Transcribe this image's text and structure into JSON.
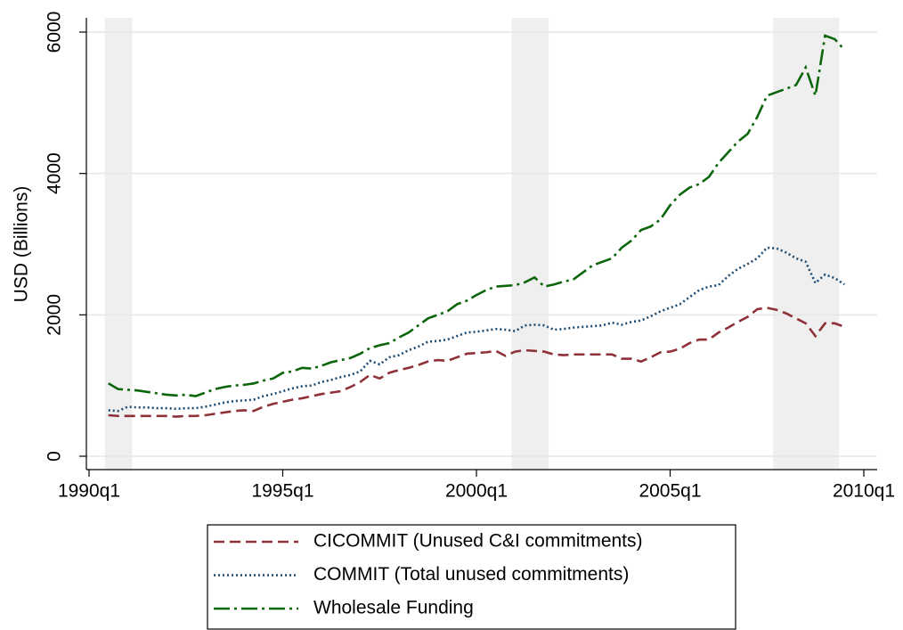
{
  "chart_data": {
    "type": "line",
    "ylabel": "USD (Billions)",
    "x": [
      "1990q3",
      "1990q4",
      "1991q1",
      "1991q2",
      "1991q3",
      "1991q4",
      "1992q1",
      "1992q2",
      "1992q3",
      "1992q4",
      "1993q1",
      "1993q2",
      "1993q3",
      "1993q4",
      "1994q1",
      "1994q2",
      "1994q3",
      "1994q4",
      "1995q1",
      "1995q2",
      "1995q3",
      "1995q4",
      "1996q1",
      "1996q2",
      "1996q3",
      "1996q4",
      "1997q1",
      "1997q2",
      "1997q3",
      "1997q4",
      "1998q1",
      "1998q2",
      "1998q3",
      "1998q4",
      "1999q1",
      "1999q2",
      "1999q3",
      "1999q4",
      "2000q1",
      "2000q2",
      "2000q3",
      "2000q4",
      "2001q1",
      "2001q2",
      "2001q3",
      "2001q4",
      "2002q1",
      "2002q2",
      "2002q3",
      "2002q4",
      "2003q1",
      "2003q2",
      "2003q3",
      "2003q4",
      "2004q1",
      "2004q2",
      "2004q3",
      "2004q4",
      "2005q1",
      "2005q2",
      "2005q3",
      "2005q4",
      "2006q1",
      "2006q2",
      "2006q3",
      "2006q4",
      "2007q1",
      "2007q2",
      "2007q3",
      "2007q4",
      "2008q1",
      "2008q2",
      "2008q3",
      "2008q4",
      "2009q1",
      "2009q2",
      "2009q3"
    ],
    "series": [
      {
        "name": "CICOMMIT (Unused C&I commitments)",
        "color": "#8f3139",
        "dash": "12,6",
        "values": [
          580,
          570,
          570,
          570,
          570,
          570,
          570,
          560,
          570,
          570,
          580,
          600,
          620,
          640,
          650,
          640,
          700,
          740,
          770,
          800,
          820,
          850,
          880,
          900,
          920,
          980,
          1050,
          1150,
          1100,
          1180,
          1220,
          1250,
          1290,
          1340,
          1360,
          1350,
          1400,
          1450,
          1460,
          1470,
          1490,
          1420,
          1480,
          1500,
          1490,
          1480,
          1440,
          1430,
          1440,
          1440,
          1440,
          1440,
          1440,
          1380,
          1380,
          1340,
          1400,
          1470,
          1480,
          1520,
          1600,
          1650,
          1650,
          1750,
          1820,
          1900,
          1970,
          2080,
          2100,
          2070,
          2020,
          1950,
          1880,
          1700,
          1880,
          1880,
          1830
        ]
      },
      {
        "name": "COMMIT (Total unused commitments)",
        "color": "#1b4a72",
        "dash": "2,3",
        "values": [
          650,
          640,
          700,
          690,
          690,
          680,
          680,
          670,
          680,
          680,
          700,
          730,
          760,
          780,
          790,
          800,
          850,
          880,
          920,
          960,
          990,
          1000,
          1050,
          1080,
          1120,
          1150,
          1200,
          1350,
          1300,
          1400,
          1430,
          1500,
          1550,
          1620,
          1630,
          1650,
          1700,
          1750,
          1760,
          1780,
          1800,
          1790,
          1770,
          1850,
          1860,
          1850,
          1790,
          1800,
          1820,
          1830,
          1840,
          1850,
          1890,
          1860,
          1900,
          1920,
          1980,
          2050,
          2100,
          2150,
          2250,
          2350,
          2400,
          2420,
          2550,
          2650,
          2720,
          2800,
          2950,
          2940,
          2880,
          2800,
          2750,
          2450,
          2570,
          2520,
          2430
        ]
      },
      {
        "name": "Wholesale Funding",
        "color": "#0b650b",
        "dash": "18,5,3,5",
        "values": [
          1030,
          950,
          940,
          930,
          910,
          890,
          870,
          860,
          870,
          850,
          900,
          950,
          980,
          1000,
          1010,
          1030,
          1070,
          1100,
          1180,
          1200,
          1250,
          1240,
          1280,
          1330,
          1360,
          1390,
          1450,
          1530,
          1570,
          1600,
          1680,
          1750,
          1850,
          1950,
          2000,
          2050,
          2150,
          2200,
          2280,
          2350,
          2400,
          2410,
          2420,
          2460,
          2530,
          2400,
          2430,
          2470,
          2500,
          2600,
          2700,
          2750,
          2800,
          2950,
          3050,
          3200,
          3250,
          3350,
          3550,
          3700,
          3800,
          3850,
          3950,
          4150,
          4300,
          4450,
          4560,
          4800,
          5100,
          5150,
          5200,
          5250,
          5500,
          5100,
          5950,
          5900,
          5750
        ]
      }
    ],
    "shaded_periods": [
      [
        "1990q3",
        "1991q1"
      ],
      [
        "2001q1",
        "2001q4"
      ],
      [
        "2007q4",
        "2009q2"
      ]
    ],
    "xlim": [
      "1990q1",
      "2010q1"
    ],
    "xticks": [
      "1990q1",
      "1995q1",
      "2000q1",
      "2005q1",
      "2010q1"
    ],
    "ylim": [
      0,
      6000
    ],
    "yticks": [
      0,
      2000,
      4000,
      6000
    ],
    "grid": true,
    "legend": "bottom"
  }
}
